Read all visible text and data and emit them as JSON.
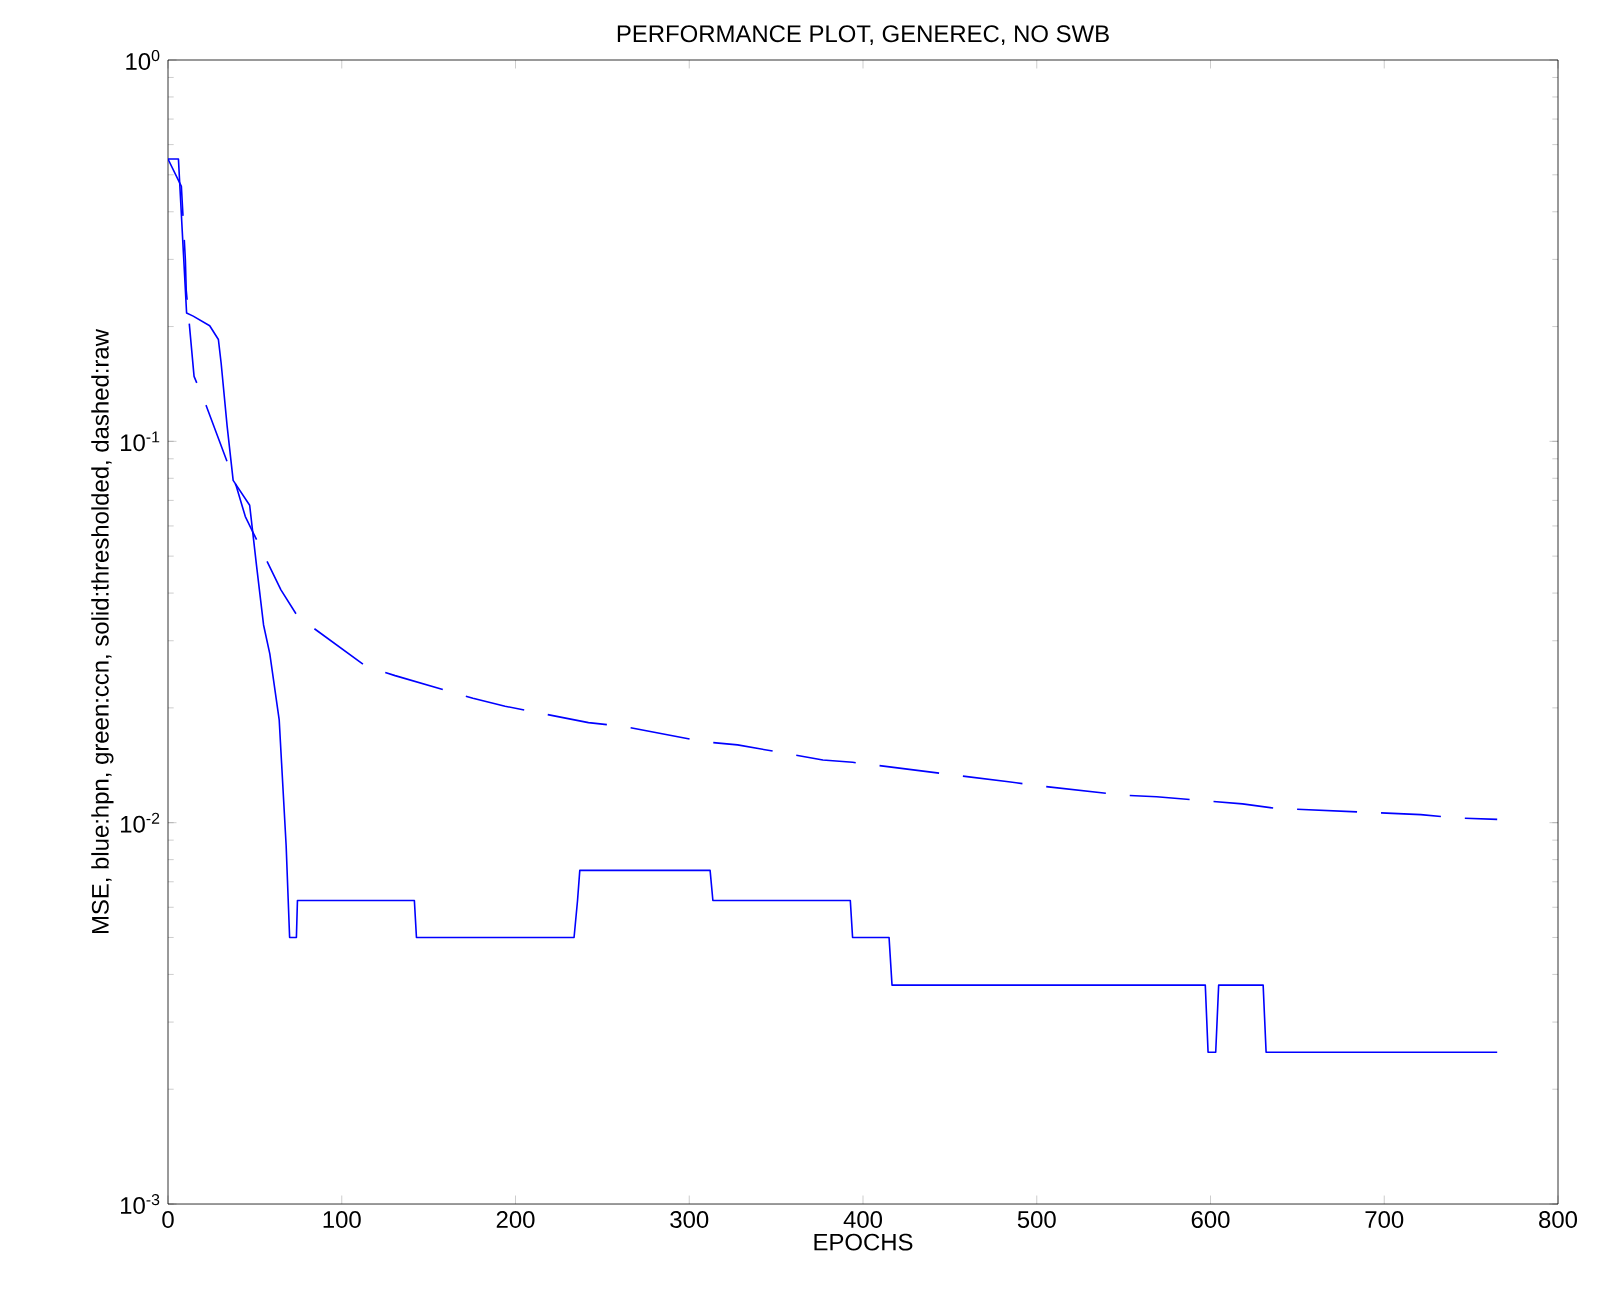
{
  "chart_data": {
    "type": "line",
    "title": "PERFORMANCE PLOT, GENEREC, NO SWB",
    "xlabel": "EPOCHS",
    "ylabel": "MSE, blue:hpn, green:ccn, solid:thresholded, dashed:raw",
    "log": "y",
    "xlim": [
      0,
      800
    ],
    "ylim": [
      0.001,
      1
    ],
    "xticks": [
      0,
      100,
      200,
      300,
      400,
      500,
      600,
      700,
      800
    ],
    "yticks": [
      {
        "value": 0.001,
        "label": "10$^{-3}$"
      },
      {
        "value": 0.01,
        "label": "10$^{-2}$"
      },
      {
        "value": 0.1,
        "label": "10$^{-1}$"
      },
      {
        "value": 1,
        "label": "10$^{0}$"
      }
    ],
    "series": [
      {
        "color": "#0000ff",
        "line_style": "solid",
        "x": [
          0,
          6,
          10.7,
          14.5,
          24,
          29,
          30.6,
          34,
          37.5,
          47,
          51,
          55,
          58.6,
          64,
          68,
          70,
          73.9,
          74.5,
          141.8,
          143,
          233.7,
          235.7,
          237,
          312,
          313.6,
          392.7,
          394,
          415,
          416.7,
          597,
          598.6,
          603,
          604.7,
          630.3,
          632,
          765
        ],
        "values": [
          0.55,
          0.55,
          0.217,
          0.213,
          0.201,
          0.185,
          0.16,
          0.11,
          0.079,
          0.068,
          0.047,
          0.033,
          0.0277,
          0.0186,
          0.0087,
          0.005,
          0.005,
          0.00625,
          0.00625,
          0.005,
          0.005,
          0.00625,
          0.0075,
          0.0075,
          0.00625,
          0.00625,
          0.005,
          0.005,
          0.00375,
          0.00375,
          0.0025,
          0.0025,
          0.00375,
          0.00375,
          0.0025,
          0.0025
        ]
      },
      {
        "color": "#0000ff",
        "line_style": "dashed",
        "x": [
          0,
          7.7,
          10,
          10.5,
          15,
          22,
          39.4,
          44.5,
          65,
          74.7,
          114,
          130.7,
          175.5,
          194,
          242,
          261.5,
          308.5,
          327.8,
          376.9,
          394,
          483.8,
          500.8,
          550,
          569,
          618.4,
          637.6,
          721,
          740,
          765
        ],
        "values": [
          0.55,
          0.466,
          0.299,
          0.249,
          0.148,
          0.124,
          0.076,
          0.0635,
          0.0408,
          0.0347,
          0.0257,
          0.0243,
          0.0212,
          0.0202,
          0.0183,
          0.0179,
          0.0163,
          0.016,
          0.0146,
          0.0144,
          0.0128,
          0.0125,
          0.0118,
          0.0117,
          0.0112,
          0.0109,
          0.0105,
          0.0103,
          0.0102
        ]
      }
    ]
  }
}
